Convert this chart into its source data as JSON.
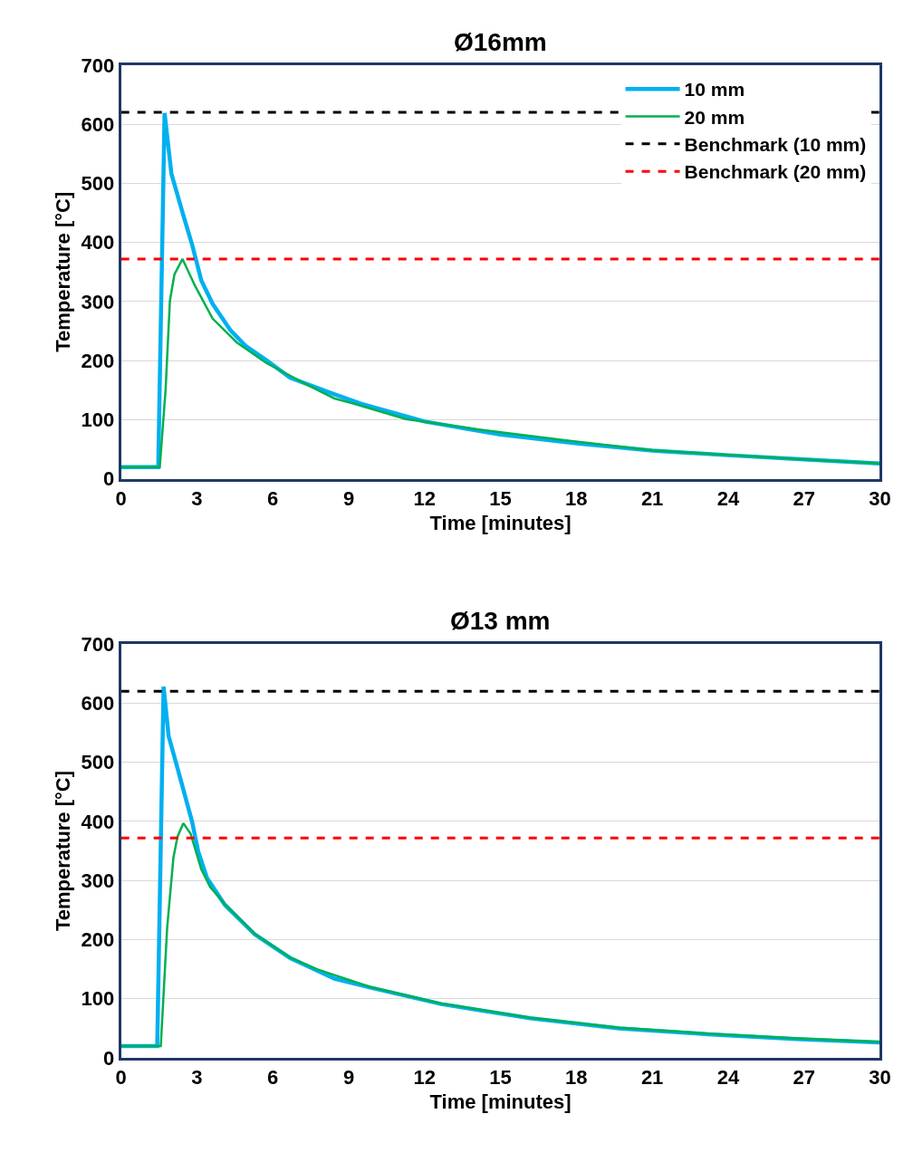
{
  "chart_data": [
    {
      "type": "line",
      "title": "Ø16mm",
      "xlabel": "Time [minutes]",
      "ylabel": "Temperature [°C]",
      "xlim": [
        0,
        30
      ],
      "xticks": [
        0,
        3,
        6,
        9,
        12,
        15,
        18,
        21,
        24,
        27,
        30
      ],
      "ylim": [
        0,
        700
      ],
      "yticks": [
        0,
        100,
        200,
        300,
        400,
        500,
        600,
        700
      ],
      "grid": "y",
      "legend": "top right",
      "marker": "none",
      "line_style": "solid",
      "series": [
        {
          "name": "10 mm",
          "color": "#00b0f0",
          "x": [
            0,
            1.47,
            1.72,
            1.99,
            2.46,
            2.81,
            3.17,
            3.62,
            4.33,
            4.92,
            5.74,
            6.68,
            8.44,
            9.5,
            12,
            15,
            18,
            21,
            24,
            27,
            30
          ],
          "values": [
            20,
            20,
            619,
            516,
            446,
            396,
            336,
            296,
            251,
            225,
            201,
            171,
            143,
            127,
            97,
            75,
            60,
            48,
            40,
            33,
            26
          ]
        },
        {
          "name": "20 mm",
          "color": "#00b050",
          "x": [
            0,
            1.53,
            1.76,
            1.93,
            2.11,
            2.43,
            2.93,
            3.62,
            4.57,
            5.74,
            7.27,
            8.44,
            9.15,
            11.26,
            14.07,
            17.59,
            21.1,
            24.6,
            27,
            30
          ],
          "values": [
            20,
            20,
            151,
            301,
            346,
            372,
            326,
            271,
            231,
            196,
            161,
            136,
            128,
            101,
            84,
            65,
            48,
            39,
            33,
            26
          ]
        }
      ],
      "ref_lines": [
        {
          "axis": "y",
          "value": 620,
          "label": "Benchmark (10 mm)",
          "color": "#000000",
          "line_style": "dashed"
        },
        {
          "axis": "y",
          "value": 372,
          "label": "Benchmark (20 mm)",
          "color": "#ff0000",
          "line_style": "dashed"
        }
      ]
    },
    {
      "type": "line",
      "title": "Ø13 mm",
      "xlabel": "Time [minutes]",
      "ylabel": "Temperature [°C]",
      "xlim": [
        0,
        30
      ],
      "xticks": [
        0,
        3,
        6,
        9,
        12,
        15,
        18,
        21,
        24,
        27,
        30
      ],
      "ylim": [
        0,
        700
      ],
      "yticks": [
        0,
        100,
        200,
        300,
        400,
        500,
        600,
        700
      ],
      "grid": "y",
      "marker": "none",
      "line_style": "solid",
      "series": [
        {
          "color": "#00b0f0",
          "x": [
            0,
            1.43,
            1.68,
            1.88,
            2.11,
            2.46,
            2.81,
            3.05,
            3.4,
            4.1,
            5.28,
            6.68,
            8.44,
            9.85,
            12.66,
            16.18,
            19.7,
            23.2,
            26.7,
            30
          ],
          "values": [
            20,
            20,
            628,
            544,
            509,
            454,
            399,
            349,
            304,
            259,
            209,
            169,
            134,
            119,
            91,
            67,
            50,
            40,
            32,
            26
          ]
        },
        {
          "color": "#00b050",
          "x": [
            0,
            1.57,
            1.82,
            2.07,
            2.23,
            2.46,
            2.75,
            3.17,
            3.52,
            4.1,
            5.28,
            6.68,
            7.74,
            9.85,
            12.66,
            16.18,
            19.7,
            23.2,
            26.7,
            30
          ],
          "values": [
            20,
            20,
            219,
            339,
            374,
            397,
            379,
            319,
            289,
            260,
            210,
            170,
            150,
            120,
            92,
            68,
            51,
            41,
            33,
            27
          ]
        }
      ],
      "ref_lines": [
        {
          "axis": "y",
          "value": 620,
          "color": "#000000",
          "line_style": "dashed"
        },
        {
          "axis": "y",
          "value": 372,
          "color": "#ff0000",
          "line_style": "dashed"
        }
      ]
    }
  ]
}
